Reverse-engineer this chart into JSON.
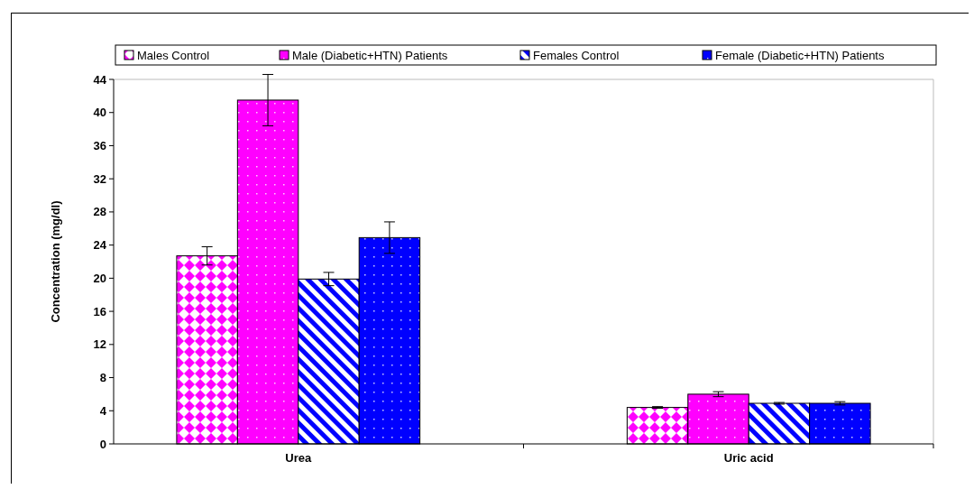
{
  "chart_data": {
    "type": "bar",
    "ylabel": "Concentration (mg/dl)",
    "categories": [
      "Urea",
      "Uric acid"
    ],
    "series": [
      {
        "name": "Males Control",
        "color": "#ff00ff",
        "values": [
          22.7,
          4.4
        ],
        "errors": [
          1.1,
          0.1
        ]
      },
      {
        "name": "Male (Diabetic+HTN) Patients",
        "color": "#ff00ff",
        "values": [
          41.5,
          6.0
        ],
        "errors": [
          3.1,
          0.3
        ]
      },
      {
        "name": "Females Control",
        "color": "#0000ff",
        "values": [
          19.9,
          4.9
        ],
        "errors": [
          0.8,
          0.1
        ]
      },
      {
        "name": "Female (Diabetic+HTN) Patients",
        "color": "#0000ff",
        "values": [
          24.9,
          4.9
        ],
        "errors": [
          1.9,
          0.2
        ]
      }
    ],
    "ylim": [
      0,
      44
    ],
    "yticks": [
      0,
      4,
      8,
      12,
      16,
      20,
      24,
      28,
      32,
      36,
      40,
      44
    ],
    "grid": false,
    "legend": "top"
  }
}
